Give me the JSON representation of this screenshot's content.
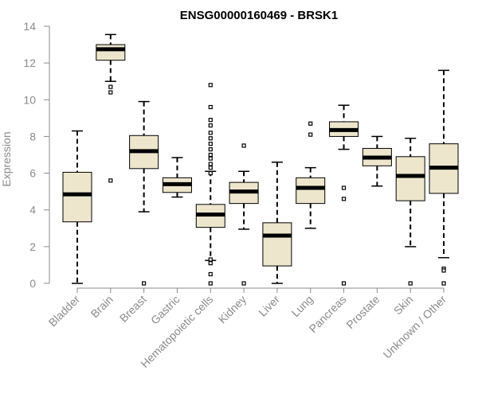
{
  "chart_data": {
    "type": "boxplot",
    "title": "ENSG00000160469 - BRSK1",
    "ylabel": "Expression",
    "xlabel": "",
    "ylim": [
      0,
      14
    ],
    "yticks": [
      0,
      2,
      4,
      6,
      8,
      10,
      12,
      14
    ],
    "grid": false,
    "colors": {
      "box_fill": "#ede6cc",
      "line": "#000000",
      "axis": "#8a8a8a"
    },
    "categories": [
      "Bladder",
      "Brain",
      "Breast",
      "Gastric",
      "Hematopoietic cells",
      "Kidney",
      "Liver",
      "Lung",
      "Pancreas",
      "Prostate",
      "Skin",
      "Unknown / Other"
    ],
    "series": [
      {
        "name": "Bladder",
        "whisker_low": 0.0,
        "q1": 3.35,
        "median": 4.85,
        "q3": 6.05,
        "whisker_high": 8.3,
        "outliers": []
      },
      {
        "name": "Brain",
        "whisker_low": 11.0,
        "q1": 12.15,
        "median": 12.75,
        "q3": 13.0,
        "whisker_high": 13.55,
        "outliers": [
          10.7,
          10.4,
          5.6
        ]
      },
      {
        "name": "Breast",
        "whisker_low": 3.9,
        "q1": 6.25,
        "median": 7.2,
        "q3": 8.05,
        "whisker_high": 9.9,
        "outliers": [
          0.0
        ]
      },
      {
        "name": "Gastric",
        "whisker_low": 4.7,
        "q1": 4.95,
        "median": 5.4,
        "q3": 5.75,
        "whisker_high": 6.85,
        "outliers": []
      },
      {
        "name": "Hematopoietic cells",
        "whisker_low": 1.25,
        "q1": 3.05,
        "median": 3.75,
        "q3": 4.3,
        "whisker_high": 6.1,
        "outliers": [
          10.8,
          9.6,
          8.9,
          8.6,
          8.2,
          7.9,
          7.6,
          7.3,
          7.0,
          6.8,
          6.5,
          6.3,
          6.0,
          1.3,
          1.1,
          0.5,
          0.0
        ]
      },
      {
        "name": "Kidney",
        "whisker_low": 2.95,
        "q1": 4.35,
        "median": 5.0,
        "q3": 5.5,
        "whisker_high": 6.1,
        "outliers": [
          7.5,
          0.0
        ]
      },
      {
        "name": "Liver",
        "whisker_low": 0.0,
        "q1": 0.95,
        "median": 2.6,
        "q3": 3.3,
        "whisker_high": 6.6,
        "outliers": []
      },
      {
        "name": "Lung",
        "whisker_low": 3.0,
        "q1": 4.35,
        "median": 5.2,
        "q3": 5.75,
        "whisker_high": 6.3,
        "outliers": [
          8.7,
          8.1
        ]
      },
      {
        "name": "Pancreas",
        "whisker_low": 7.3,
        "q1": 8.0,
        "median": 8.35,
        "q3": 8.8,
        "whisker_high": 9.7,
        "outliers": [
          5.2,
          4.6,
          0.0
        ]
      },
      {
        "name": "Prostate",
        "whisker_low": 5.3,
        "q1": 6.4,
        "median": 6.85,
        "q3": 7.35,
        "whisker_high": 8.0,
        "outliers": []
      },
      {
        "name": "Skin",
        "whisker_low": 2.0,
        "q1": 4.5,
        "median": 5.85,
        "q3": 6.9,
        "whisker_high": 7.9,
        "outliers": [
          0.0
        ]
      },
      {
        "name": "Unknown / Other",
        "whisker_low": 1.4,
        "q1": 4.9,
        "median": 6.3,
        "q3": 7.6,
        "whisker_high": 11.6,
        "outliers": [
          0.8,
          0.7,
          0.0
        ]
      }
    ]
  }
}
